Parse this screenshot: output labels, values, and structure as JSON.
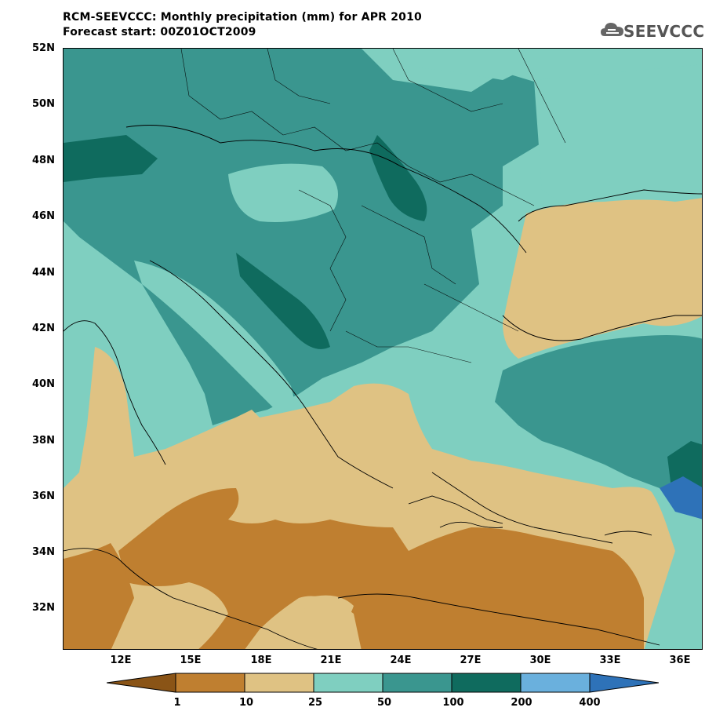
{
  "header": {
    "title_line1": "RCM-SEEVCCC: Monthly precipitation (mm) for APR 2010",
    "title_line2": "Forecast start: 00Z01OCT2009",
    "logo_text": "SEEVCCC"
  },
  "axes": {
    "lat_labels": [
      "52N",
      "50N",
      "48N",
      "46N",
      "44N",
      "42N",
      "40N",
      "38N",
      "36N",
      "34N",
      "32N"
    ],
    "lon_labels": [
      "12E",
      "15E",
      "18E",
      "21E",
      "24E",
      "27E",
      "30E",
      "33E",
      "36E"
    ]
  },
  "colorbar": {
    "labels": [
      "1",
      "10",
      "25",
      "50",
      "100",
      "200",
      "400"
    ],
    "colors": [
      "#8a5416",
      "#bf7f30",
      "#dfc283",
      "#7fcfc0",
      "#3a968f",
      "#0f6b5e",
      "#6ab0dd",
      "#2e72b8"
    ]
  }
}
